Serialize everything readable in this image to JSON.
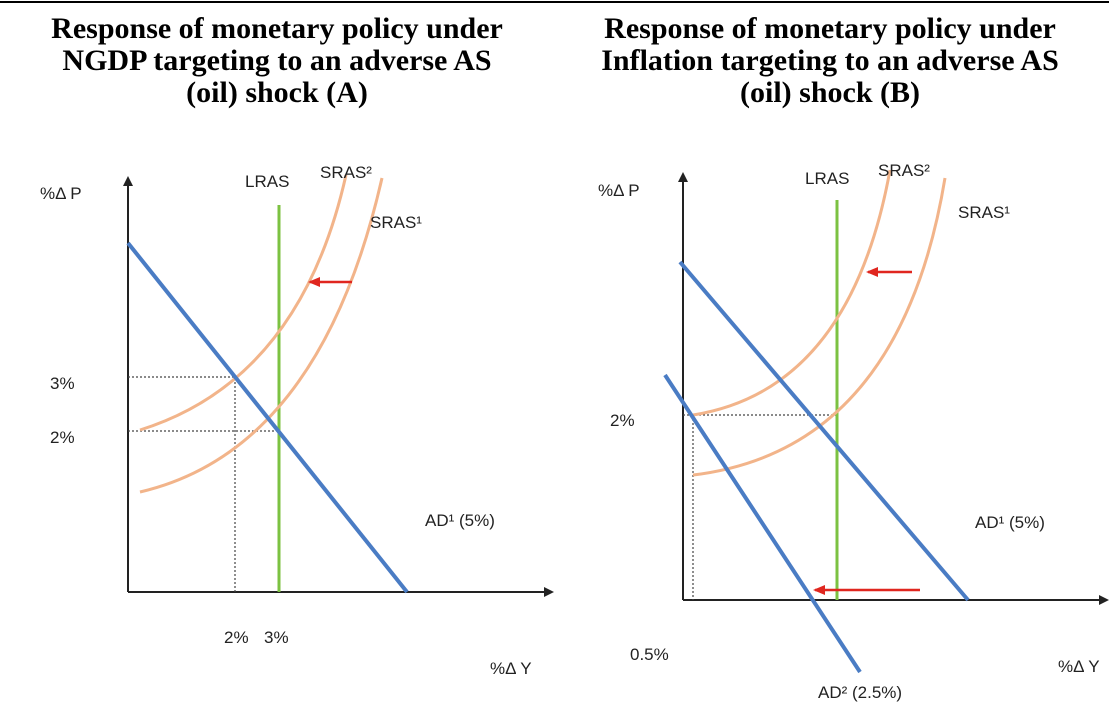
{
  "panels": [
    {
      "title": [
        "Response of monetary policy under",
        "NGDP targeting to an adverse AS",
        "(oil) shock (A)"
      ],
      "y_axis_label": "%Δ P",
      "x_axis_label": "%Δ Y",
      "lras_label": "LRAS",
      "sras2_label": "SRAS²",
      "sras1_label": "SRAS¹",
      "ad1_label": "AD¹ (5%)",
      "y_ticks": [
        "3%",
        "2%"
      ],
      "x_ticks": [
        "2%",
        "3%"
      ]
    },
    {
      "title": [
        "Response of monetary policy under",
        "Inflation targeting to an adverse AS",
        "(oil) shock (B)"
      ],
      "y_axis_label": "%Δ P",
      "x_axis_label": "%Δ Y",
      "lras_label": "LRAS",
      "sras2_label": "SRAS²",
      "sras1_label": "SRAS¹",
      "ad1_label": "AD¹ (5%)",
      "ad2_label": "AD² (2.5%)",
      "y_ticks": [
        "2%"
      ],
      "x_ticks": [
        "0.5%"
      ]
    }
  ]
}
